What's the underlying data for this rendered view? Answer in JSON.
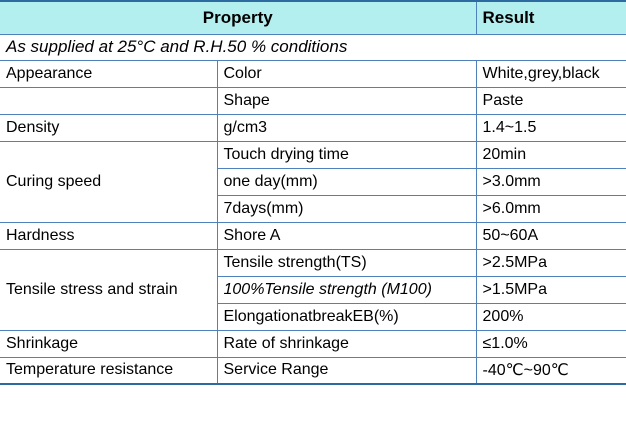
{
  "colors": {
    "header_background": "#b3efef",
    "rule_blue": "#4f81bd",
    "outer_rule_blue": "#2d6a9f",
    "text": "#000000"
  },
  "header": {
    "property": "Property",
    "result": "Result"
  },
  "note": "As supplied at 25°C and R.H.50 % conditions",
  "rows": [
    {
      "property": "Appearance",
      "sub": "Color",
      "result": "White,grey,black"
    },
    {
      "property": "",
      "sub": "Shape",
      "result": "Paste"
    },
    {
      "property": "Density",
      "sub": "g/cm3",
      "result": "1.4~1.5"
    },
    {
      "property": "Curing speed",
      "sub": "Touch drying time",
      "result": "20min"
    },
    {
      "sub": "one day(mm)",
      "result": ">3.0mm"
    },
    {
      "sub": "7days(mm)",
      "result": ">6.0mm"
    },
    {
      "property": "Hardness",
      "sub": "Shore A",
      "result": "50~60A"
    },
    {
      "property": "Tensile stress and strain",
      "sub": "Tensile strength(TS)",
      "result": ">2.5MPa"
    },
    {
      "sub": "100%Tensile strength (M100)",
      "result": ">1.5MPa"
    },
    {
      "sub": "ElongationatbreakEB(%)",
      "result": "200%"
    },
    {
      "property": "Shrinkage",
      "sub": "Rate of shrinkage",
      "result": "≤1.0%"
    },
    {
      "property": "Temperature resistance",
      "sub": "Service Range",
      "result": "-40℃~90℃"
    }
  ]
}
